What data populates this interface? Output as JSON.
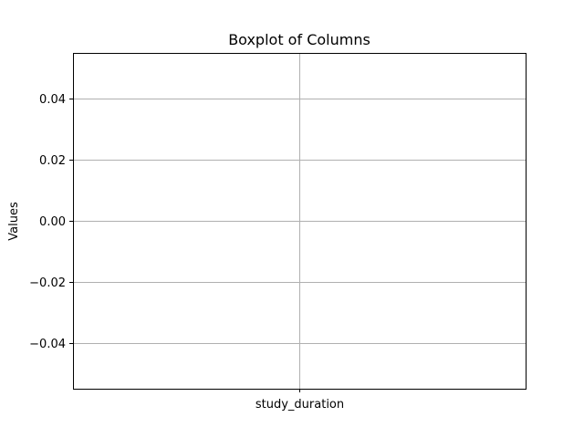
{
  "chart_data": {
    "type": "box",
    "title": "Boxplot of Columns",
    "xlabel": "",
    "ylabel": "Values",
    "categories": [
      "study_duration"
    ],
    "series": [
      {
        "values": []
      }
    ],
    "ylim": [
      -0.055,
      0.055
    ],
    "yticks": [
      -0.04,
      -0.02,
      0.0,
      0.02,
      0.04
    ],
    "ytick_labels": [
      "−0.04",
      "−0.02",
      "0.00",
      "0.02",
      "0.04"
    ],
    "grid": true,
    "legend": "none"
  }
}
